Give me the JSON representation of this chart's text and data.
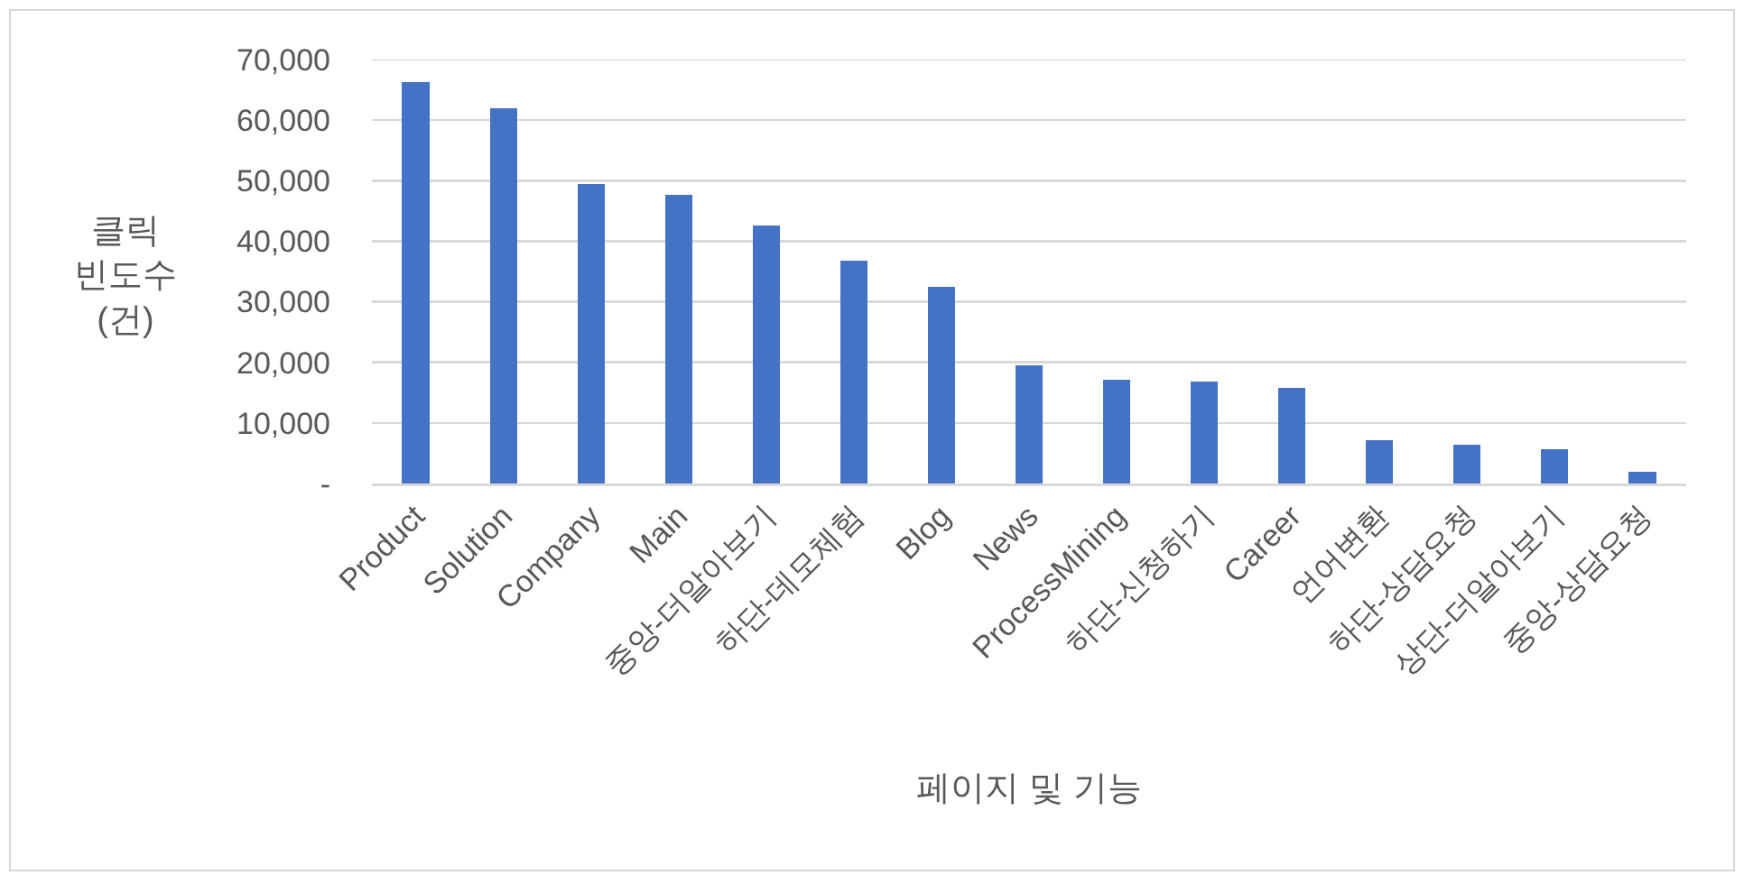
{
  "chart_data": {
    "type": "bar",
    "xlabel": "페이지 및 기능",
    "ylabel": "클릭\n빈도수\n(건)",
    "categories": [
      "Product",
      "Solution",
      "Company",
      "Main",
      "중앙-더알아보기",
      "하단-데모체험",
      "Blog",
      "News",
      "ProcessMining",
      "하단-신청하기",
      "Career",
      "언어변환",
      "하단-상담요청",
      "상단-더알아보기",
      "중앙-상담요청"
    ],
    "values": [
      66300,
      61900,
      49400,
      47600,
      42600,
      36800,
      32500,
      19500,
      17200,
      16800,
      15800,
      7100,
      6400,
      5700,
      1900
    ],
    "color": "#4472c4",
    "ylim": [
      0,
      70000
    ],
    "yticks": [
      {
        "value": 0,
        "label": "-"
      },
      {
        "value": 10000,
        "label": "10,000"
      },
      {
        "value": 20000,
        "label": "20,000"
      },
      {
        "value": 30000,
        "label": "30,000"
      },
      {
        "value": 40000,
        "label": "40,000"
      },
      {
        "value": 50000,
        "label": "50,000"
      },
      {
        "value": 60000,
        "label": "60,000"
      },
      {
        "value": 70000,
        "label": "70,000"
      }
    ],
    "grid": "y"
  }
}
